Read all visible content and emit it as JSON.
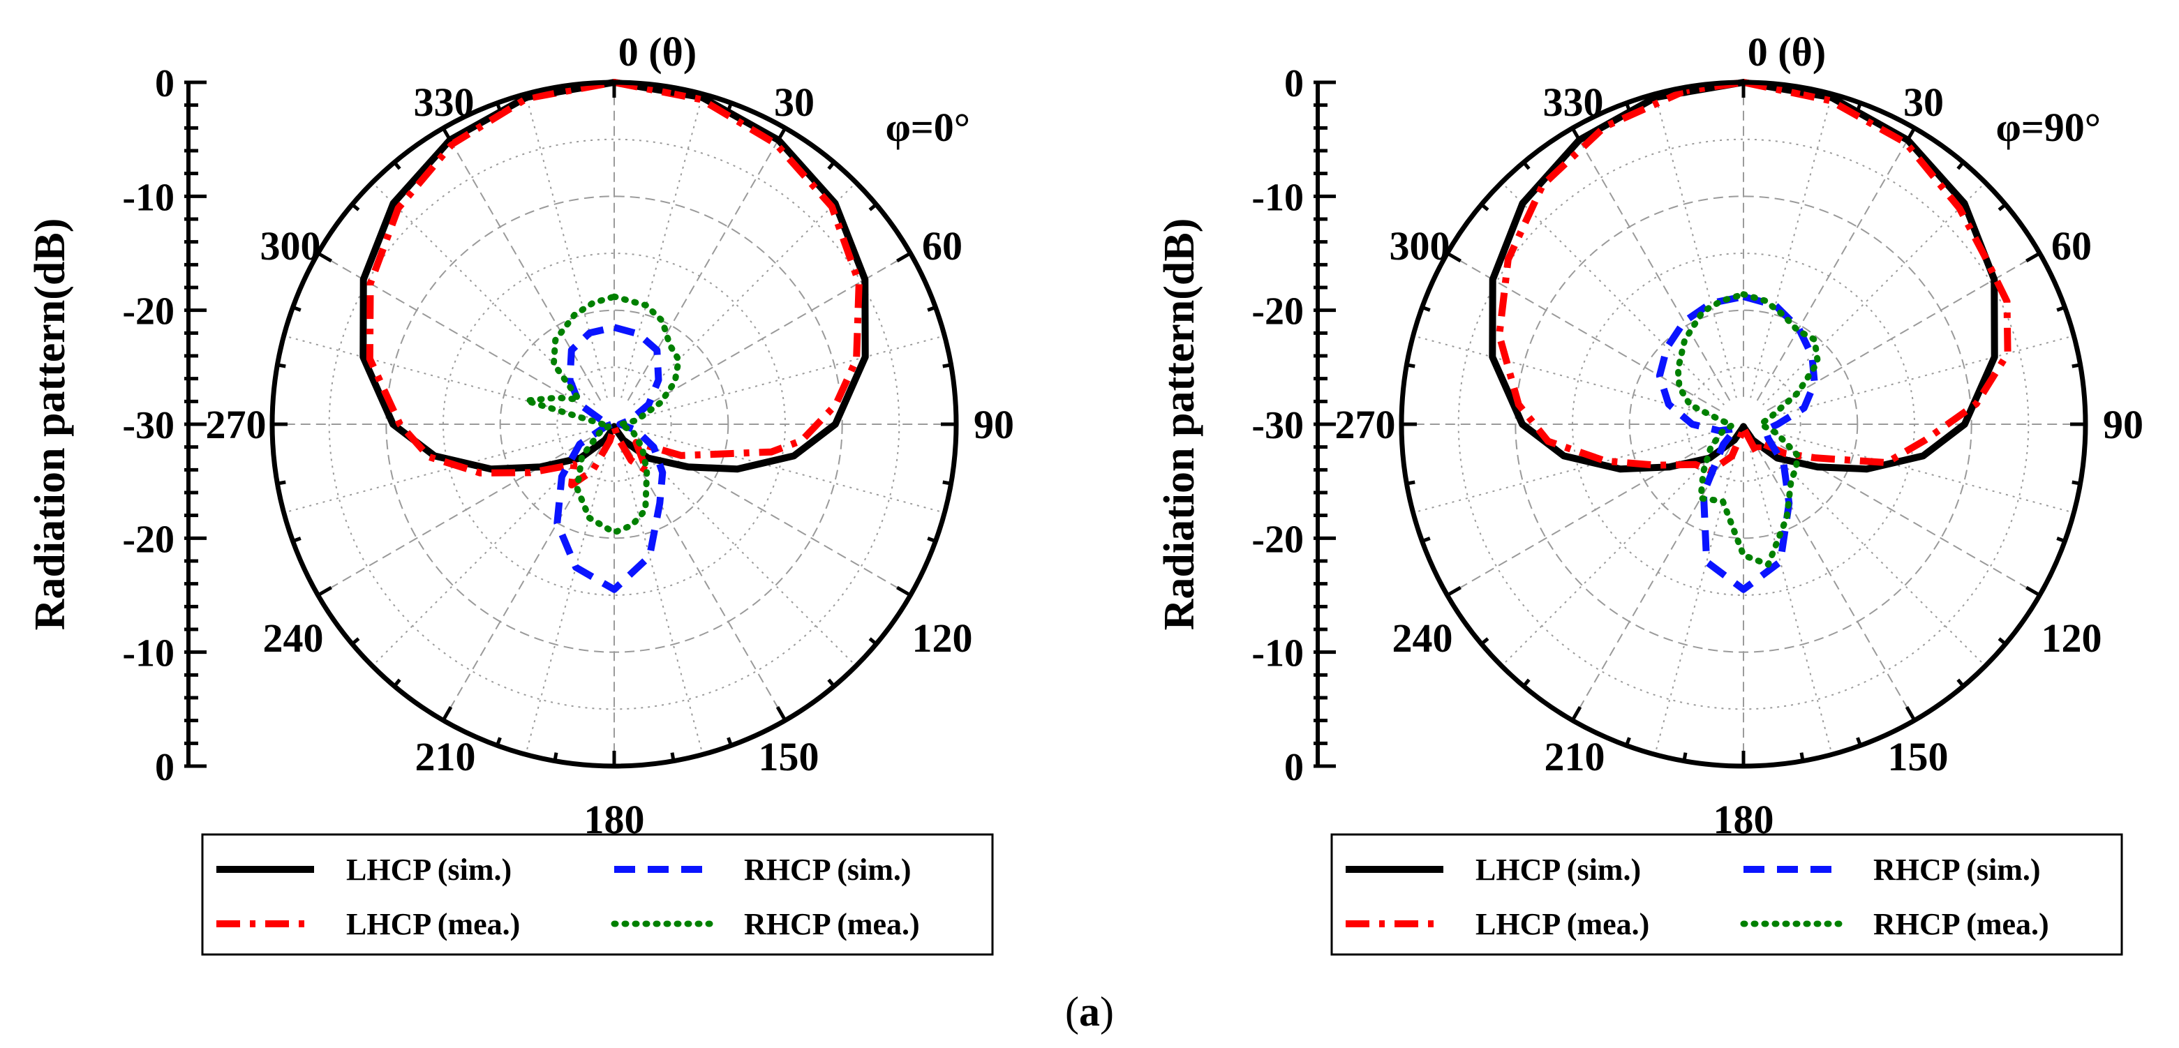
{
  "caption": {
    "open": "(",
    "letter": "a",
    "close": ")"
  },
  "colors": {
    "lhcp_sim": "#000000",
    "rhcp_sim": "#0a14ff",
    "lhcp_mea": "#ff0000",
    "rhcp_mea": "#008000",
    "grid": "#9a9a9a"
  },
  "chart_data": [
    {
      "type": "polar",
      "title": "φ=0°",
      "ylabel": "Radiation pattern(dB)",
      "angle_label_top": "0 (θ)",
      "angle_labels": [
        "330",
        "30",
        "300",
        "60",
        "270",
        "90",
        "240",
        "120",
        "210",
        "150",
        "180"
      ],
      "radial_ticks_top": [
        "0",
        "-10",
        "-20",
        "-30"
      ],
      "radial_ticks_bottom": [
        "-20",
        "-10",
        "0"
      ],
      "r_range_db": [
        -30,
        0
      ],
      "legend": [
        "LHCP (sim.)",
        "RHCP (sim.)",
        "LHCP (mea.)",
        "RHCP (mea.)"
      ],
      "series": [
        {
          "name": "LHCP (sim.)",
          "style": "solid",
          "color": "#000000",
          "points": [
            [
              0,
              0
            ],
            [
              15,
              -0.3
            ],
            [
              30,
              -1.2
            ],
            [
              45,
              -2.6
            ],
            [
              60,
              -4.6
            ],
            [
              75,
              -7.2
            ],
            [
              90,
              -10.6
            ],
            [
              100,
              -14
            ],
            [
              110,
              -18.5
            ],
            [
              120,
              -22.5
            ],
            [
              135,
              -25.8
            ],
            [
              150,
              -28.4
            ],
            [
              165,
              -29.6
            ],
            [
              180,
              -29.8
            ],
            [
              195,
              -29.6
            ],
            [
              210,
              -28.4
            ],
            [
              225,
              -25.8
            ],
            [
              240,
              -22.5
            ],
            [
              250,
              -18.5
            ],
            [
              260,
              -14
            ],
            [
              270,
              -10.6
            ],
            [
              285,
              -7.2
            ],
            [
              300,
              -4.6
            ],
            [
              315,
              -2.6
            ],
            [
              330,
              -1.2
            ],
            [
              345,
              -0.3
            ],
            [
              360,
              0
            ]
          ]
        },
        {
          "name": "LHCP (mea.)",
          "style": "dashdot",
          "color": "#ff0000",
          "points": [
            [
              0,
              0
            ],
            [
              15,
              -0.5
            ],
            [
              30,
              -1.6
            ],
            [
              45,
              -3.0
            ],
            [
              60,
              -5.2
            ],
            [
              75,
              -8.0
            ],
            [
              85,
              -10.5
            ],
            [
              95,
              -13.5
            ],
            [
              100,
              -16
            ],
            [
              115,
              -23.5
            ],
            [
              130,
              -27.5
            ],
            [
              145,
              -25
            ],
            [
              155,
              -26.5
            ],
            [
              165,
              -28.8
            ],
            [
              180,
              -29.8
            ],
            [
              195,
              -28.5
            ],
            [
              205,
              -25.5
            ],
            [
              215,
              -23.5
            ],
            [
              225,
              -25
            ],
            [
              240,
              -21.5
            ],
            [
              250,
              -17.5
            ],
            [
              260,
              -13.5
            ],
            [
              270,
              -11.2
            ],
            [
              285,
              -7.8
            ],
            [
              300,
              -5.3
            ],
            [
              315,
              -3.2
            ],
            [
              330,
              -1.6
            ],
            [
              345,
              -0.4
            ],
            [
              360,
              0
            ]
          ]
        },
        {
          "name": "RHCP (sim.)",
          "style": "dashed",
          "color": "#0a14ff",
          "points": [
            [
              0,
              -21.5
            ],
            [
              15,
              -21.8
            ],
            [
              30,
              -22.5
            ],
            [
              45,
              -24.5
            ],
            [
              60,
              -26.5
            ],
            [
              75,
              -28.5
            ],
            [
              90,
              -29.5
            ],
            [
              105,
              -28
            ],
            [
              120,
              -26
            ],
            [
              135,
              -24
            ],
            [
              150,
              -22
            ],
            [
              165,
              -18
            ],
            [
              180,
              -15.5
            ],
            [
              195,
              -17
            ],
            [
              210,
              -20
            ],
            [
              225,
              -23.5
            ],
            [
              240,
              -26.5
            ],
            [
              255,
              -29.2
            ],
            [
              270,
              -29.8
            ],
            [
              285,
              -29
            ],
            [
              300,
              -26.5
            ],
            [
              315,
              -24.5
            ],
            [
              330,
              -22.5
            ],
            [
              345,
              -21.7
            ],
            [
              360,
              -21.5
            ]
          ]
        },
        {
          "name": "RHCP (mea.)",
          "style": "dotted",
          "color": "#008000",
          "points": [
            [
              0,
              -18.8
            ],
            [
              15,
              -19.2
            ],
            [
              25,
              -20
            ],
            [
              35,
              -21.5
            ],
            [
              45,
              -22
            ],
            [
              55,
              -23.5
            ],
            [
              65,
              -25.5
            ],
            [
              80,
              -28
            ],
            [
              95,
              -29.5
            ],
            [
              110,
              -28.3
            ],
            [
              130,
              -26.8
            ],
            [
              145,
              -25
            ],
            [
              160,
              -22
            ],
            [
              170,
              -21
            ],
            [
              180,
              -20.5
            ],
            [
              195,
              -21.5
            ],
            [
              210,
              -23.5
            ],
            [
              225,
              -26
            ],
            [
              240,
              -28.5
            ],
            [
              255,
              -29.6
            ],
            [
              270,
              -29
            ],
            [
              285,
              -22
            ],
            [
              295,
              -24.5
            ],
            [
              305,
              -26.2
            ],
            [
              315,
              -22.5
            ],
            [
              325,
              -21
            ],
            [
              340,
              -19.8
            ],
            [
              350,
              -19.2
            ],
            [
              360,
              -18.8
            ]
          ]
        }
      ]
    },
    {
      "type": "polar",
      "title": "φ=90°",
      "ylabel": "Radiation pattern(dB)",
      "angle_label_top": "0 (θ)",
      "angle_labels": [
        "330",
        "30",
        "300",
        "60",
        "270",
        "90",
        "240",
        "120",
        "210",
        "150",
        "180"
      ],
      "radial_ticks_top": [
        "0",
        "-10",
        "-20",
        "-30"
      ],
      "radial_ticks_bottom": [
        "-20",
        "-10",
        "0"
      ],
      "r_range_db": [
        -30,
        0
      ],
      "legend": [
        "LHCP (sim.)",
        "RHCP (sim.)",
        "LHCP (mea.)",
        "RHCP (mea.)"
      ],
      "series": [
        {
          "name": "LHCP (sim.)",
          "style": "solid",
          "color": "#000000",
          "points": [
            [
              0,
              0
            ],
            [
              15,
              -0.3
            ],
            [
              30,
              -1.2
            ],
            [
              45,
              -2.6
            ],
            [
              60,
              -4.6
            ],
            [
              75,
              -7.2
            ],
            [
              90,
              -10.6
            ],
            [
              100,
              -14
            ],
            [
              110,
              -18.5
            ],
            [
              120,
              -22.5
            ],
            [
              135,
              -25.8
            ],
            [
              150,
              -28.4
            ],
            [
              165,
              -29.6
            ],
            [
              180,
              -29.8
            ],
            [
              195,
              -29.6
            ],
            [
              210,
              -28.4
            ],
            [
              225,
              -25.8
            ],
            [
              240,
              -22.5
            ],
            [
              250,
              -18.5
            ],
            [
              260,
              -14
            ],
            [
              270,
              -10.6
            ],
            [
              285,
              -7.2
            ],
            [
              300,
              -4.6
            ],
            [
              315,
              -2.6
            ],
            [
              330,
              -1.2
            ],
            [
              345,
              -0.3
            ],
            [
              360,
              0
            ]
          ]
        },
        {
          "name": "LHCP (mea.)",
          "style": "dashdot",
          "color": "#ff0000",
          "points": [
            [
              0,
              0
            ],
            [
              15,
              -0.6
            ],
            [
              30,
              -1.5
            ],
            [
              45,
              -3.2
            ],
            [
              55,
              -4.2
            ],
            [
              65,
              -4.5
            ],
            [
              75,
              -6
            ],
            [
              85,
              -9.5
            ],
            [
              95,
              -14
            ],
            [
              105,
              -17
            ],
            [
              115,
              -23
            ],
            [
              125,
              -25.5
            ],
            [
              140,
              -28
            ],
            [
              155,
              -27
            ],
            [
              170,
              -29.5
            ],
            [
              180,
              -29.8
            ],
            [
              190,
              -29.2
            ],
            [
              200,
              -27
            ],
            [
              215,
              -25
            ],
            [
              230,
              -24.5
            ],
            [
              245,
              -21.5
            ],
            [
              255,
              -17.5
            ],
            [
              265,
              -12.8
            ],
            [
              275,
              -10.2
            ],
            [
              290,
              -7.2
            ],
            [
              305,
              -4.8
            ],
            [
              320,
              -2.6
            ],
            [
              335,
              -1.2
            ],
            [
              350,
              -0.3
            ],
            [
              360,
              0
            ]
          ]
        },
        {
          "name": "RHCP (sim.)",
          "style": "dashed",
          "color": "#0a14ff",
          "points": [
            [
              0,
              -18.8
            ],
            [
              15,
              -19.2
            ],
            [
              30,
              -20.3
            ],
            [
              45,
              -21.5
            ],
            [
              60,
              -22.8
            ],
            [
              75,
              -24.5
            ],
            [
              90,
              -27
            ],
            [
              105,
              -28
            ],
            [
              120,
              -27.5
            ],
            [
              135,
              -25
            ],
            [
              150,
              -22
            ],
            [
              165,
              -17.5
            ],
            [
              180,
              -15.5
            ],
            [
              195,
              -17.5
            ],
            [
              210,
              -23
            ],
            [
              225,
              -27.5
            ],
            [
              240,
              -29.2
            ],
            [
              255,
              -27.8
            ],
            [
              270,
              -25.5
            ],
            [
              285,
              -23.2
            ],
            [
              300,
              -21.5
            ],
            [
              315,
              -20.5
            ],
            [
              330,
              -19.6
            ],
            [
              345,
              -19
            ],
            [
              360,
              -18.8
            ]
          ]
        },
        {
          "name": "RHCP (mea.)",
          "style": "dotted",
          "color": "#008000",
          "points": [
            [
              0,
              -18.6
            ],
            [
              10,
              -19
            ],
            [
              20,
              -19.8
            ],
            [
              30,
              -20.5
            ],
            [
              40,
              -20.3
            ],
            [
              50,
              -21.5
            ],
            [
              60,
              -24.5
            ],
            [
              75,
              -27.5
            ],
            [
              90,
              -28.5
            ],
            [
              105,
              -27
            ],
            [
              120,
              -24.5
            ],
            [
              130,
              -24
            ],
            [
              140,
              -23.5
            ],
            [
              155,
              -21
            ],
            [
              170,
              -17.5
            ],
            [
              180,
              -18.5
            ],
            [
              195,
              -23
            ],
            [
              210,
              -22.5
            ],
            [
              220,
              -24.5
            ],
            [
              235,
              -26.5
            ],
            [
              250,
              -28
            ],
            [
              265,
              -29
            ],
            [
              280,
              -28
            ],
            [
              290,
              -25
            ],
            [
              300,
              -23.5
            ],
            [
              310,
              -22.5
            ],
            [
              325,
              -21
            ],
            [
              340,
              -19.5
            ],
            [
              350,
              -19
            ],
            [
              360,
              -18.6
            ]
          ]
        }
      ]
    }
  ]
}
